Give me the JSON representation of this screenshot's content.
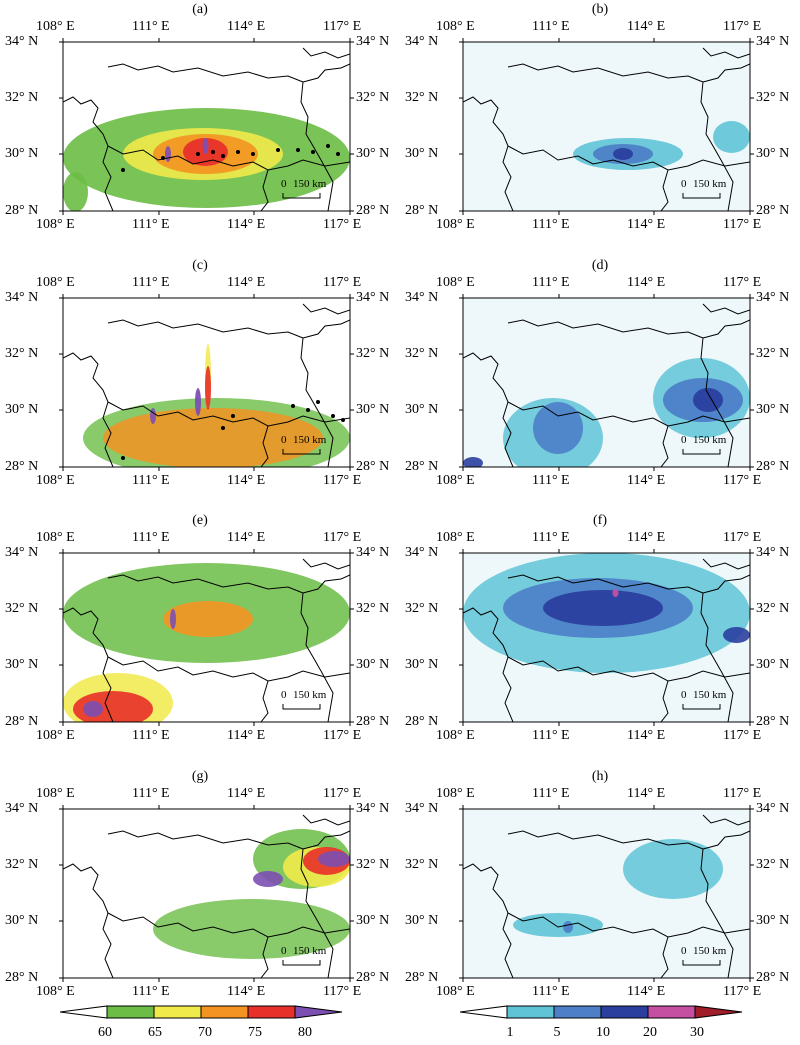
{
  "panels": [
    {
      "id": "a",
      "label": "(a)",
      "type": "intensity"
    },
    {
      "id": "b",
      "label": "(b)",
      "type": "density"
    },
    {
      "id": "c",
      "label": "(c)",
      "type": "intensity"
    },
    {
      "id": "d",
      "label": "(d)",
      "type": "density"
    },
    {
      "id": "e",
      "label": "(e)",
      "type": "intensity"
    },
    {
      "id": "f",
      "label": "(f)",
      "type": "density"
    },
    {
      "id": "g",
      "label": "(g)",
      "type": "intensity"
    },
    {
      "id": "h",
      "label": "(h)",
      "type": "density"
    }
  ],
  "axes": {
    "lon_ticks": [
      "108° E",
      "111° E",
      "114° E",
      "117° E"
    ],
    "lat_ticks": [
      "34° N",
      "32° N",
      "30° N",
      "28° N"
    ]
  },
  "scale_bar": {
    "zero": "0",
    "distance": "150 km"
  },
  "colorbars": {
    "left": {
      "ticks": [
        "60",
        "65",
        "70",
        "75",
        "80"
      ],
      "colors": [
        "#ffffff",
        "#6bbd45",
        "#f0ea4a",
        "#f39322",
        "#e8302a",
        "#7c4fb3"
      ]
    },
    "right": {
      "ticks": [
        "1",
        "5",
        "10",
        "20",
        "30"
      ],
      "colors": [
        "#ffffff",
        "#5fc4d6",
        "#4d7fc8",
        "#2b3f9e",
        "#c54fa0",
        "#a01d2a"
      ]
    }
  },
  "map_colors": {
    "density_background": "#eef8fb",
    "border": "#000000"
  }
}
